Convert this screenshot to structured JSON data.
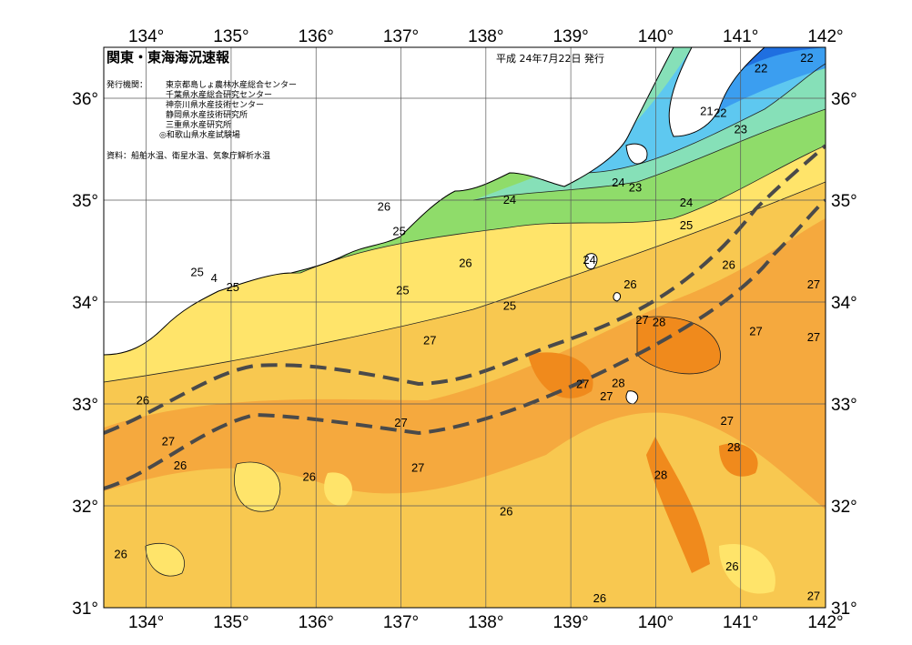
{
  "header": {
    "title": "関東・東海海況速報",
    "date": "平成 24年7月22日 発行",
    "publisher_label": "発行機関：",
    "publishers": [
      "東京都島しょ農林水産総合センター",
      "千葉県水産総合研究センター",
      "神奈川県水産技術センター",
      "静岡県水産技術研究所",
      "三重県水産研究所",
      "◎和歌山県水産試験場"
    ],
    "source": "資料：船舶水温、衛星水温、気象庁解析水温"
  },
  "axes": {
    "lon_ticks": [
      "134°",
      "135°",
      "136°",
      "137°",
      "138°",
      "139°",
      "140°",
      "141°",
      "142°"
    ],
    "lat_ticks": [
      "36°",
      "35°",
      "34°",
      "33°",
      "32°",
      "31°"
    ]
  },
  "isotherm_labels": [
    {
      "text": "22",
      "lon": 141.24,
      "lat": 36.3
    },
    {
      "text": "22",
      "lon": 141.78,
      "lat": 36.4
    },
    {
      "text": "21",
      "lon": 140.6,
      "lat": 35.88
    },
    {
      "text": "22",
      "lon": 140.76,
      "lat": 35.86
    },
    {
      "text": "23",
      "lon": 141.0,
      "lat": 35.7
    },
    {
      "text": "24",
      "lon": 139.56,
      "lat": 35.18
    },
    {
      "text": "23",
      "lon": 139.76,
      "lat": 35.13
    },
    {
      "text": "24",
      "lon": 140.36,
      "lat": 34.98
    },
    {
      "text": "25",
      "lon": 140.36,
      "lat": 34.76
    },
    {
      "text": "24",
      "lon": 138.28,
      "lat": 35.01
    },
    {
      "text": "26",
      "lon": 136.8,
      "lat": 34.94
    },
    {
      "text": "25",
      "lon": 136.98,
      "lat": 34.7
    },
    {
      "text": "25",
      "lon": 134.6,
      "lat": 34.3
    },
    {
      "text": "4",
      "lon": 134.8,
      "lat": 34.24
    },
    {
      "text": "25",
      "lon": 135.02,
      "lat": 34.15
    },
    {
      "text": "25",
      "lon": 137.02,
      "lat": 34.12
    },
    {
      "text": "26",
      "lon": 137.76,
      "lat": 34.39
    },
    {
      "text": "24",
      "lon": 139.22,
      "lat": 34.42
    },
    {
      "text": "26",
      "lon": 139.7,
      "lat": 34.18
    },
    {
      "text": "26",
      "lon": 140.86,
      "lat": 34.37
    },
    {
      "text": "27",
      "lon": 141.86,
      "lat": 34.18
    },
    {
      "text": "25",
      "lon": 138.28,
      "lat": 33.97
    },
    {
      "text": "27",
      "lon": 139.84,
      "lat": 33.83
    },
    {
      "text": "28",
      "lon": 140.04,
      "lat": 33.81
    },
    {
      "text": "27",
      "lon": 141.18,
      "lat": 33.72
    },
    {
      "text": "27",
      "lon": 141.86,
      "lat": 33.66
    },
    {
      "text": "27",
      "lon": 137.34,
      "lat": 33.63
    },
    {
      "text": "27",
      "lon": 139.14,
      "lat": 33.2
    },
    {
      "text": "28",
      "lon": 139.56,
      "lat": 33.21
    },
    {
      "text": "27",
      "lon": 139.42,
      "lat": 33.08
    },
    {
      "text": "26",
      "lon": 133.96,
      "lat": 33.04
    },
    {
      "text": "27",
      "lon": 137.0,
      "lat": 32.82
    },
    {
      "text": "27",
      "lon": 140.84,
      "lat": 32.84
    },
    {
      "text": "27",
      "lon": 134.26,
      "lat": 32.64
    },
    {
      "text": "28",
      "lon": 140.92,
      "lat": 32.58
    },
    {
      "text": "26",
      "lon": 134.4,
      "lat": 32.4
    },
    {
      "text": "27",
      "lon": 137.2,
      "lat": 32.38
    },
    {
      "text": "26",
      "lon": 135.92,
      "lat": 32.29
    },
    {
      "text": "28",
      "lon": 140.06,
      "lat": 32.31
    },
    {
      "text": "26",
      "lon": 138.24,
      "lat": 31.95
    },
    {
      "text": "26",
      "lon": 133.7,
      "lat": 31.53
    },
    {
      "text": "26",
      "lon": 140.9,
      "lat": 31.41
    },
    {
      "text": "26",
      "lon": 139.34,
      "lat": 31.1
    },
    {
      "text": "27",
      "lon": 141.86,
      "lat": 31.12
    }
  ],
  "colors": {
    "t21": "#1f6fe0",
    "t22": "#3b9ef0",
    "t23": "#5ec8f0",
    "t24": "#86e0b8",
    "t25": "#8fdc6a",
    "t26": "#ffe46a",
    "t26b": "#f8c850",
    "t27": "#f5a93e",
    "t28": "#f08a1c",
    "land": "#ffffff",
    "stream": "#4a4a4a",
    "grid": "#5a5a5a"
  }
}
